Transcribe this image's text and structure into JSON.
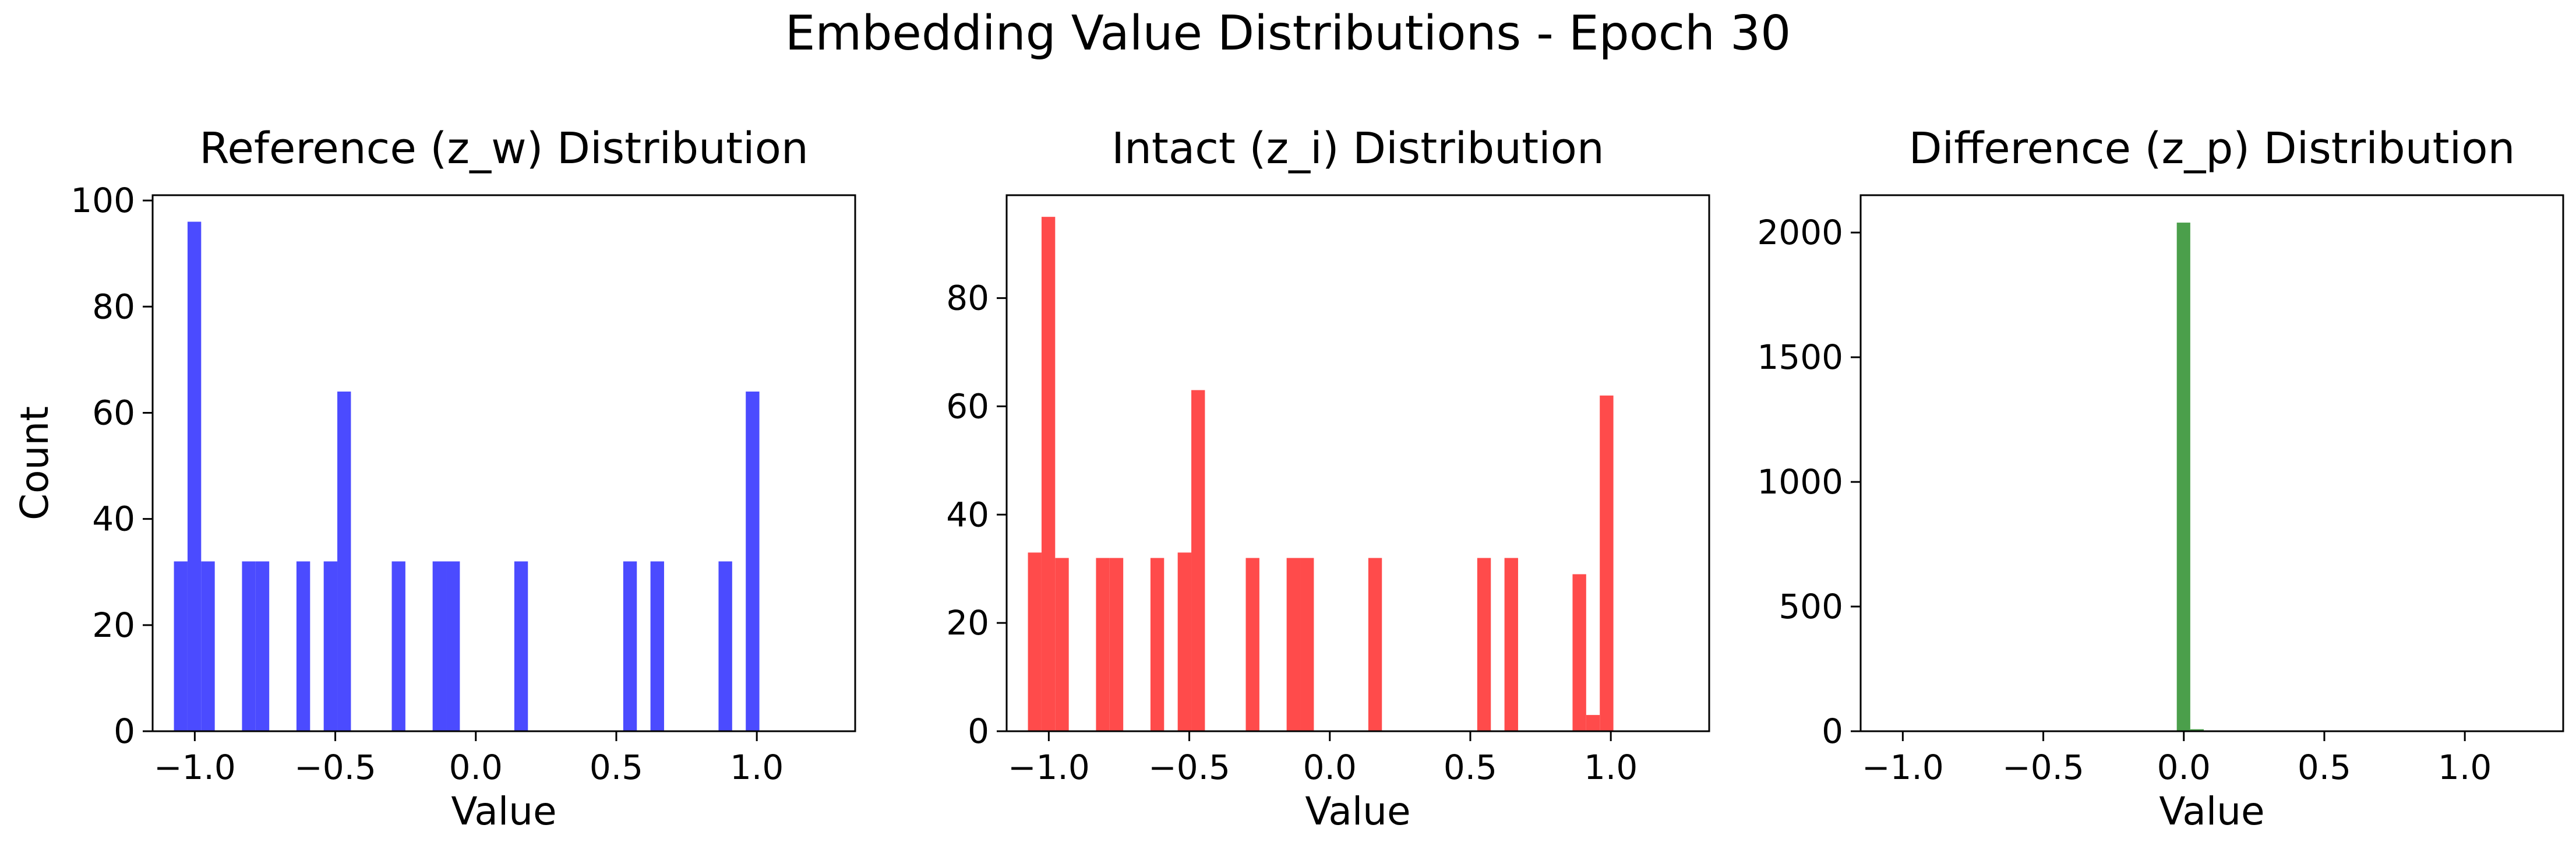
{
  "figure": {
    "title": "Embedding Value Distributions - Epoch 30"
  },
  "chart_data": [
    {
      "type": "bar",
      "title": "Reference (z_w) Distribution",
      "xlabel": "Value",
      "ylabel": "Count",
      "color": "#4b4bff",
      "xlim": [
        -1.15,
        1.35
      ],
      "ylim": [
        0,
        101
      ],
      "xticks": [
        -1.0,
        -0.5,
        0.0,
        0.5,
        1.0
      ],
      "xtick_labels": [
        "−1.0",
        "−0.5",
        "0.0",
        "0.5",
        "1.0"
      ],
      "yticks": [
        0,
        20,
        40,
        60,
        80,
        100
      ],
      "ytick_labels": [
        "0",
        "20",
        "40",
        "60",
        "80",
        "100"
      ],
      "bin_start": -1.0742,
      "bin_width": 0.04845,
      "values": [
        32,
        96,
        32,
        0,
        0,
        32,
        32,
        0,
        0,
        32,
        0,
        32,
        64,
        0,
        0,
        0,
        32,
        0,
        0,
        32,
        32,
        0,
        0,
        0,
        0,
        32,
        0,
        0,
        0,
        0,
        0,
        0,
        0,
        32,
        0,
        32,
        0,
        0,
        0,
        0,
        32,
        0,
        64
      ]
    },
    {
      "type": "bar",
      "title": "Intact (z_i) Distribution",
      "xlabel": "Value",
      "ylabel": "",
      "color": "#ff4b4b",
      "xlim": [
        -1.15,
        1.35
      ],
      "ylim": [
        0,
        99
      ],
      "xticks": [
        -1.0,
        -0.5,
        0.0,
        0.5,
        1.0
      ],
      "xtick_labels": [
        "−1.0",
        "−0.5",
        "0.0",
        "0.5",
        "1.0"
      ],
      "yticks": [
        0,
        20,
        40,
        60,
        80
      ],
      "ytick_labels": [
        "0",
        "20",
        "40",
        "60",
        "80"
      ],
      "bin_start": -1.0742,
      "bin_width": 0.04845,
      "values": [
        33,
        95,
        32,
        0,
        0,
        32,
        32,
        0,
        0,
        32,
        0,
        33,
        63,
        0,
        0,
        0,
        32,
        0,
        0,
        32,
        32,
        0,
        0,
        0,
        0,
        32,
        0,
        0,
        0,
        0,
        0,
        0,
        0,
        32,
        0,
        32,
        0,
        0,
        0,
        0,
        29,
        3,
        62
      ]
    },
    {
      "type": "bar",
      "title": "Difference (z_p) Distribution",
      "xlabel": "Value",
      "ylabel": "",
      "color": "#4b9f4b",
      "xlim": [
        -1.15,
        1.35
      ],
      "ylim": [
        0,
        2150
      ],
      "xticks": [
        -1.0,
        -0.5,
        0.0,
        0.5,
        1.0
      ],
      "xtick_labels": [
        "−1.0",
        "−0.5",
        "0.0",
        "0.5",
        "1.0"
      ],
      "yticks": [
        0,
        500,
        1000,
        1500,
        2000
      ],
      "ytick_labels": [
        "0",
        "500",
        "1000",
        "1500",
        "2000"
      ],
      "bin_start": -0.025,
      "bin_width": 0.048,
      "values": [
        2040,
        8
      ]
    }
  ]
}
